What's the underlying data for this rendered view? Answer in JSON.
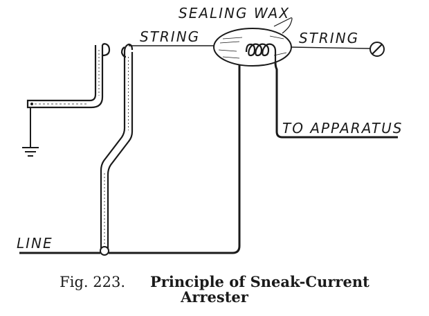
{
  "labels": {
    "sealing_wax": "SEALING WAX",
    "string_left": "STRING",
    "string_right": "STRING",
    "to_apparatus": "TO APPARATUS",
    "line": "LINE"
  },
  "caption": {
    "figure_number": "Fig. 223.",
    "title_line1": "Principle of Sneak-Current",
    "title_line2": "Arrester"
  },
  "colors": {
    "ink": "#1a1a1a",
    "background": "#ffffff"
  }
}
